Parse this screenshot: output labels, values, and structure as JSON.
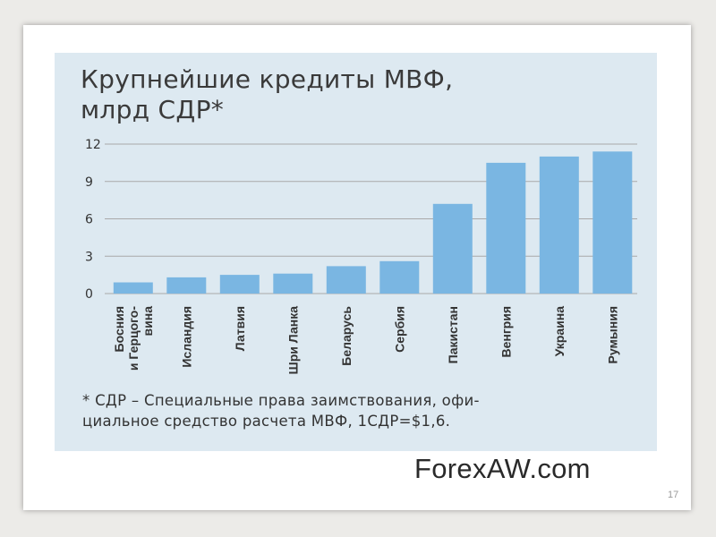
{
  "title_lines": [
    "Крупнейшие кредиты МВФ,",
    "млрд СДР*"
  ],
  "footnote_lines": [
    "* СДР – Специальные права заимствования, офи-",
    "циальное средство расчета МВФ, 1СДР=$1,6."
  ],
  "brand": "ForexAW.com",
  "slide_number": "17",
  "colors": {
    "bar": "#7ab6e2",
    "panel": "#dde9f1",
    "grid": "#a9a9a9",
    "text": "#333333"
  },
  "chart_data": {
    "type": "bar",
    "title": "Крупнейшие кредиты МВФ, млрд СДР*",
    "categories": [
      [
        "Босния",
        "и Герцого-",
        "вина"
      ],
      [
        "Исландия"
      ],
      [
        "Латвия"
      ],
      [
        "Шри Ланка"
      ],
      [
        "Беларусь"
      ],
      [
        "Сербия"
      ],
      [
        "Пакистан"
      ],
      [
        "Венгрия"
      ],
      [
        "Украина"
      ],
      [
        "Румыния"
      ]
    ],
    "values": [
      0.9,
      1.3,
      1.5,
      1.6,
      2.2,
      2.6,
      7.2,
      10.5,
      11.0,
      11.4
    ],
    "yticks": [
      0,
      3,
      6,
      9,
      12
    ],
    "ylim": [
      0,
      12
    ],
    "grid": true,
    "legend": "none"
  }
}
